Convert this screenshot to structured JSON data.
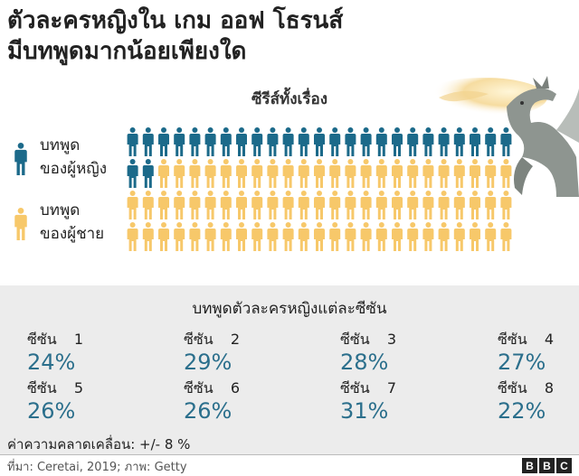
{
  "title": {
    "line1": "ตัวละครหญิงใน เกม ออฟ โธรนส์",
    "line2": "มีบทพูดมากน้อยเพียงใด"
  },
  "colors": {
    "female": "#1c6a8a",
    "male": "#f7c86a",
    "value_text": "#2b6f8c",
    "panel_bg": "#ececec"
  },
  "chart_data": [
    {
      "type": "pictogram",
      "title": "ซีรีส์ทั้งเรื่อง",
      "rows": 4,
      "columns": 25,
      "total_icons": 100,
      "series": [
        {
          "name": "บทพูดของผู้หญิง",
          "count": 27,
          "color": "#1c6a8a"
        },
        {
          "name": "บทพูดของผู้ชาย",
          "count": 73,
          "color": "#f7c86a"
        }
      ],
      "legend_position": "left"
    },
    {
      "type": "table",
      "title": "บทพูดตัวละครหญิงแต่ละซีซัน",
      "categories": [
        "1",
        "2",
        "3",
        "4",
        "5",
        "6",
        "7",
        "8"
      ],
      "series": [
        {
          "name": "",
          "values": [
            24,
            29,
            28,
            27,
            26,
            26,
            31,
            22
          ],
          "unit": "%"
        }
      ]
    }
  ],
  "legend": {
    "female": {
      "line1": "บทพูด",
      "line2": "ของผู้หญิง",
      "icon": "person-icon"
    },
    "male": {
      "line1": "บทพูด",
      "line2": "ของผู้ชาย",
      "icon": "person-icon"
    }
  },
  "panel": {
    "title": "บทพูดตัวละครหญิงแต่ละซีซัน",
    "season_word": "ซีซัน",
    "seasons": [
      {
        "number": "1",
        "value": "24%"
      },
      {
        "number": "2",
        "value": "29%"
      },
      {
        "number": "3",
        "value": "28%"
      },
      {
        "number": "4",
        "value": "27%"
      },
      {
        "number": "5",
        "value": "26%"
      },
      {
        "number": "6",
        "value": "26%"
      },
      {
        "number": "7",
        "value": "31%"
      },
      {
        "number": "8",
        "value": "22%"
      }
    ]
  },
  "margin_of_error": "ค่าความคลาดเคลื่อน: +/- 8 %",
  "source": "ที่มา: Ceretai, 2019; ภาพ: Getty",
  "logo": [
    "B",
    "B",
    "C"
  ]
}
